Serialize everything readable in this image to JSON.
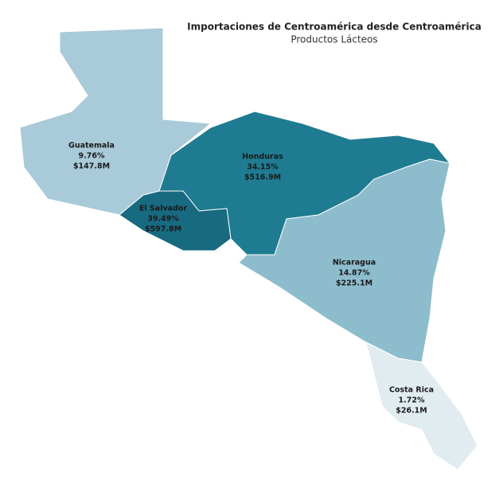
{
  "chart_data": {
    "type": "choropleth",
    "title": "Importaciones de Centroamérica desde Centroamérica",
    "subtitle": "Productos Lácteos",
    "categories": [
      "Guatemala",
      "Honduras",
      "El Salvador",
      "Nicaragua",
      "Costa Rica"
    ],
    "values": [
      9.76,
      34.15,
      39.49,
      14.87,
      1.72
    ],
    "value_labels": [
      "9.76%",
      "34.15%",
      "39.49%",
      "14.87%",
      "1.72%"
    ],
    "amounts": [
      147800000,
      516900000,
      597800000,
      225100000,
      26100000
    ],
    "amount_labels": [
      "$147.8M",
      "$516.9M",
      "$597.8M",
      "$225.1M",
      "$26.1M"
    ],
    "colors": [
      "#a9cad8",
      "#1f7b91",
      "#186a80",
      "#8dbccd",
      "#e1ecf1"
    ]
  }
}
